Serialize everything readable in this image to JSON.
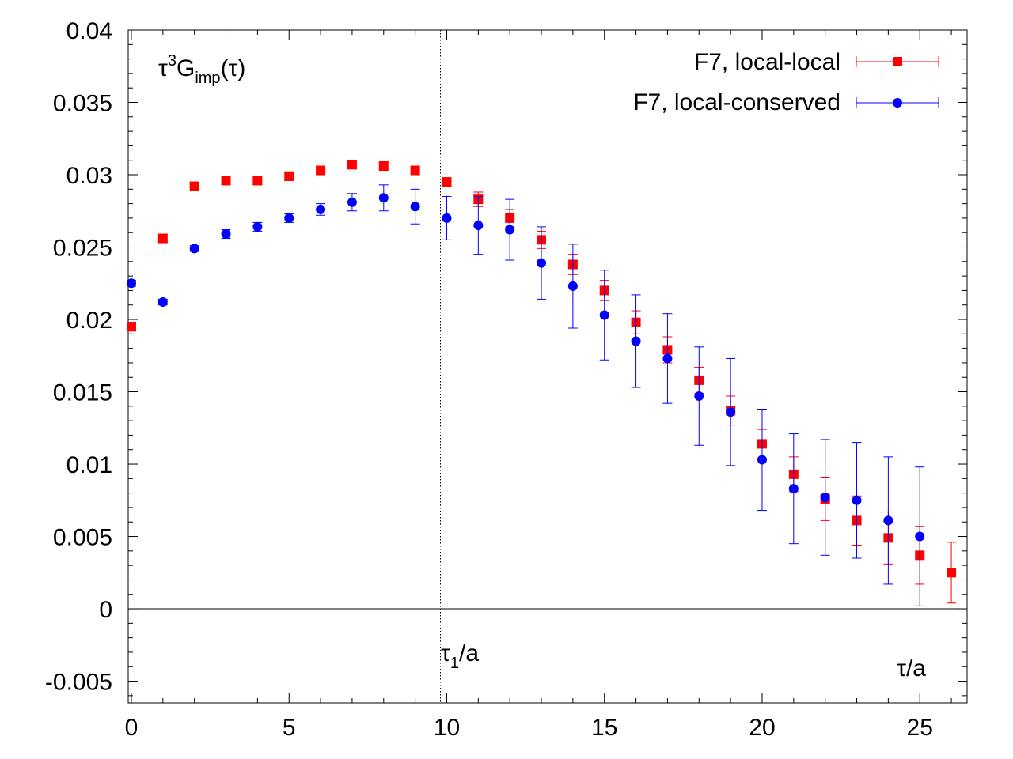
{
  "chart_data": {
    "type": "scatter",
    "ylabel_main": "τ",
    "ylabel_sup": "3",
    "ylabel_g": "G",
    "ylabel_sub": "imp",
    "ylabel_tail": "(τ)",
    "xlabel": "τ/a",
    "vline_label_main": "τ",
    "vline_label_sub": "1",
    "vline_label_tail": "/a",
    "vline_x": 9.8,
    "xlim": [
      -0.1,
      26.5
    ],
    "ylim": [
      -0.0065,
      0.04
    ],
    "xticks": [
      "0",
      "5",
      "10",
      "15",
      "20",
      "25"
    ],
    "xtick_values": [
      0,
      5,
      10,
      15,
      20,
      25
    ],
    "yticks": [
      "-0.005",
      "0",
      "0.005",
      "0.01",
      "0.015",
      "0.02",
      "0.025",
      "0.03",
      "0.035",
      "0.04"
    ],
    "ytick_values": [
      -0.005,
      0,
      0.005,
      0.01,
      0.015,
      0.02,
      0.025,
      0.03,
      0.035,
      0.04
    ],
    "series": [
      {
        "name": "F7, local-local",
        "color": "#ff0000",
        "marker": "square",
        "x": [
          0,
          1,
          2,
          3,
          4,
          5,
          6,
          7,
          8,
          9,
          10,
          11,
          12,
          13,
          14,
          15,
          16,
          17,
          18,
          19,
          20,
          21,
          22,
          23,
          24,
          25,
          26
        ],
        "y": [
          0.0195,
          0.0256,
          0.0292,
          0.0296,
          0.0296,
          0.0299,
          0.0303,
          0.0307,
          0.0306,
          0.0303,
          0.0295,
          0.0283,
          0.027,
          0.0255,
          0.0238,
          0.022,
          0.0198,
          0.0179,
          0.0158,
          0.0137,
          0.0114,
          0.0093,
          0.0076,
          0.0061,
          0.0049,
          0.0037,
          0.0025
        ],
        "err": [
          0.0003,
          0.0003,
          0.0003,
          0.0003,
          0.0003,
          0.0003,
          0.0003,
          0.0003,
          0.0003,
          0.0003,
          0.0003,
          0.0005,
          0.0006,
          0.0006,
          0.0007,
          0.0007,
          0.0008,
          0.0009,
          0.0009,
          0.001,
          0.001,
          0.0012,
          0.0015,
          0.0017,
          0.0018,
          0.002,
          0.0021
        ]
      },
      {
        "name": "F7, local-conserved",
        "color": "#0000ff",
        "marker": "circle",
        "x": [
          0,
          1,
          2,
          3,
          4,
          5,
          6,
          7,
          8,
          9,
          10,
          11,
          12,
          13,
          14,
          15,
          16,
          17,
          18,
          19,
          20,
          21,
          22,
          23,
          24,
          25
        ],
        "y": [
          0.0225,
          0.0212,
          0.0249,
          0.0259,
          0.0264,
          0.027,
          0.0276,
          0.0281,
          0.0284,
          0.0278,
          0.027,
          0.0265,
          0.0262,
          0.0239,
          0.0223,
          0.0203,
          0.0185,
          0.0173,
          0.0147,
          0.0136,
          0.0103,
          0.0083,
          0.0077,
          0.0075,
          0.0061,
          0.005
        ],
        "err": [
          0.0002,
          0.0002,
          0.0002,
          0.0003,
          0.0003,
          0.0003,
          0.0004,
          0.0006,
          0.0009,
          0.0012,
          0.0015,
          0.002,
          0.0021,
          0.0025,
          0.0029,
          0.0031,
          0.0032,
          0.0031,
          0.0034,
          0.0037,
          0.0035,
          0.0038,
          0.004,
          0.004,
          0.0044,
          0.0048
        ]
      }
    ]
  }
}
